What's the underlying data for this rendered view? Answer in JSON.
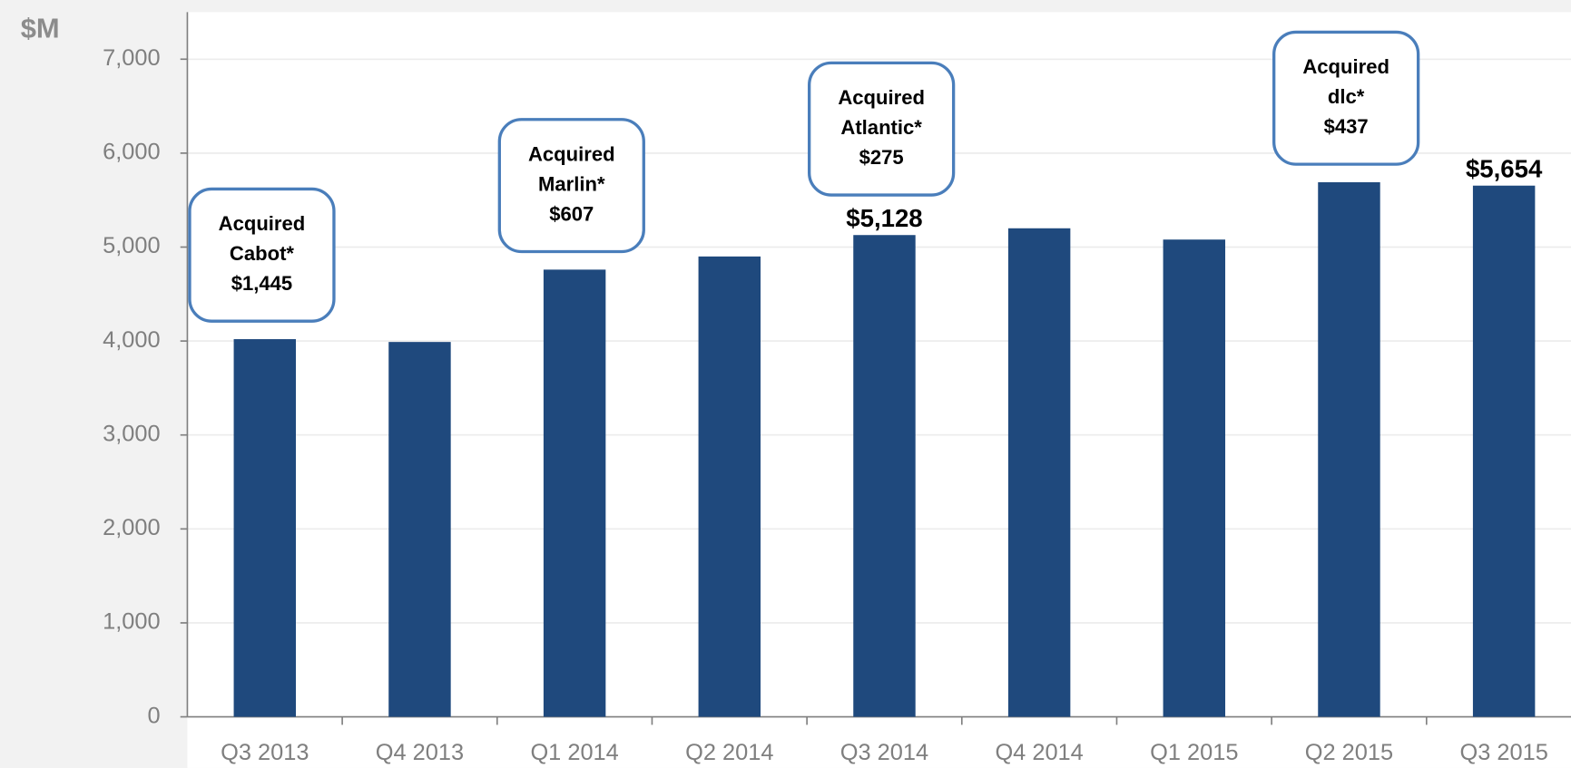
{
  "chart_data": {
    "type": "bar",
    "y_label": "$M",
    "categories": [
      "Q3 2013",
      "Q4 2013",
      "Q1 2014",
      "Q2 2014",
      "Q3 2014",
      "Q4 2014",
      "Q1 2015",
      "Q2 2015",
      "Q3 2015"
    ],
    "values": [
      4020,
      3990,
      4760,
      4900,
      5128,
      5200,
      5080,
      5690,
      5654
    ],
    "value_labels": [
      null,
      null,
      null,
      null,
      "$5,128",
      null,
      null,
      null,
      "$5,654"
    ],
    "color": "#1f497d",
    "ylim": [
      0,
      7000
    ],
    "yticks": [
      0,
      {
        "value": 1000,
        "label": "1,000"
      },
      {
        "value": 2000,
        "label": "2,000"
      },
      {
        "value": 3000,
        "label": "3,000"
      },
      {
        "value": 4000,
        "label": "4,000"
      },
      {
        "value": 5000,
        "label": "5,000"
      },
      {
        "value": 6000,
        "label": "6,000"
      },
      {
        "value": 7000,
        "label": "7,000"
      }
    ],
    "grid": true,
    "annotations": [
      {
        "category": "Q3 2013",
        "lines": [
          "Acquired",
          "Cabot*",
          "$1,445"
        ]
      },
      {
        "category": "Q1 2014",
        "lines": [
          "Acquired",
          "Marlin*",
          "$607"
        ]
      },
      {
        "category": "Q3 2014",
        "lines": [
          "Acquired",
          "Atlantic*",
          "$275"
        ]
      },
      {
        "category": "Q2 2015",
        "lines": [
          "Acquired",
          "dlc*",
          "$437"
        ]
      }
    ]
  }
}
